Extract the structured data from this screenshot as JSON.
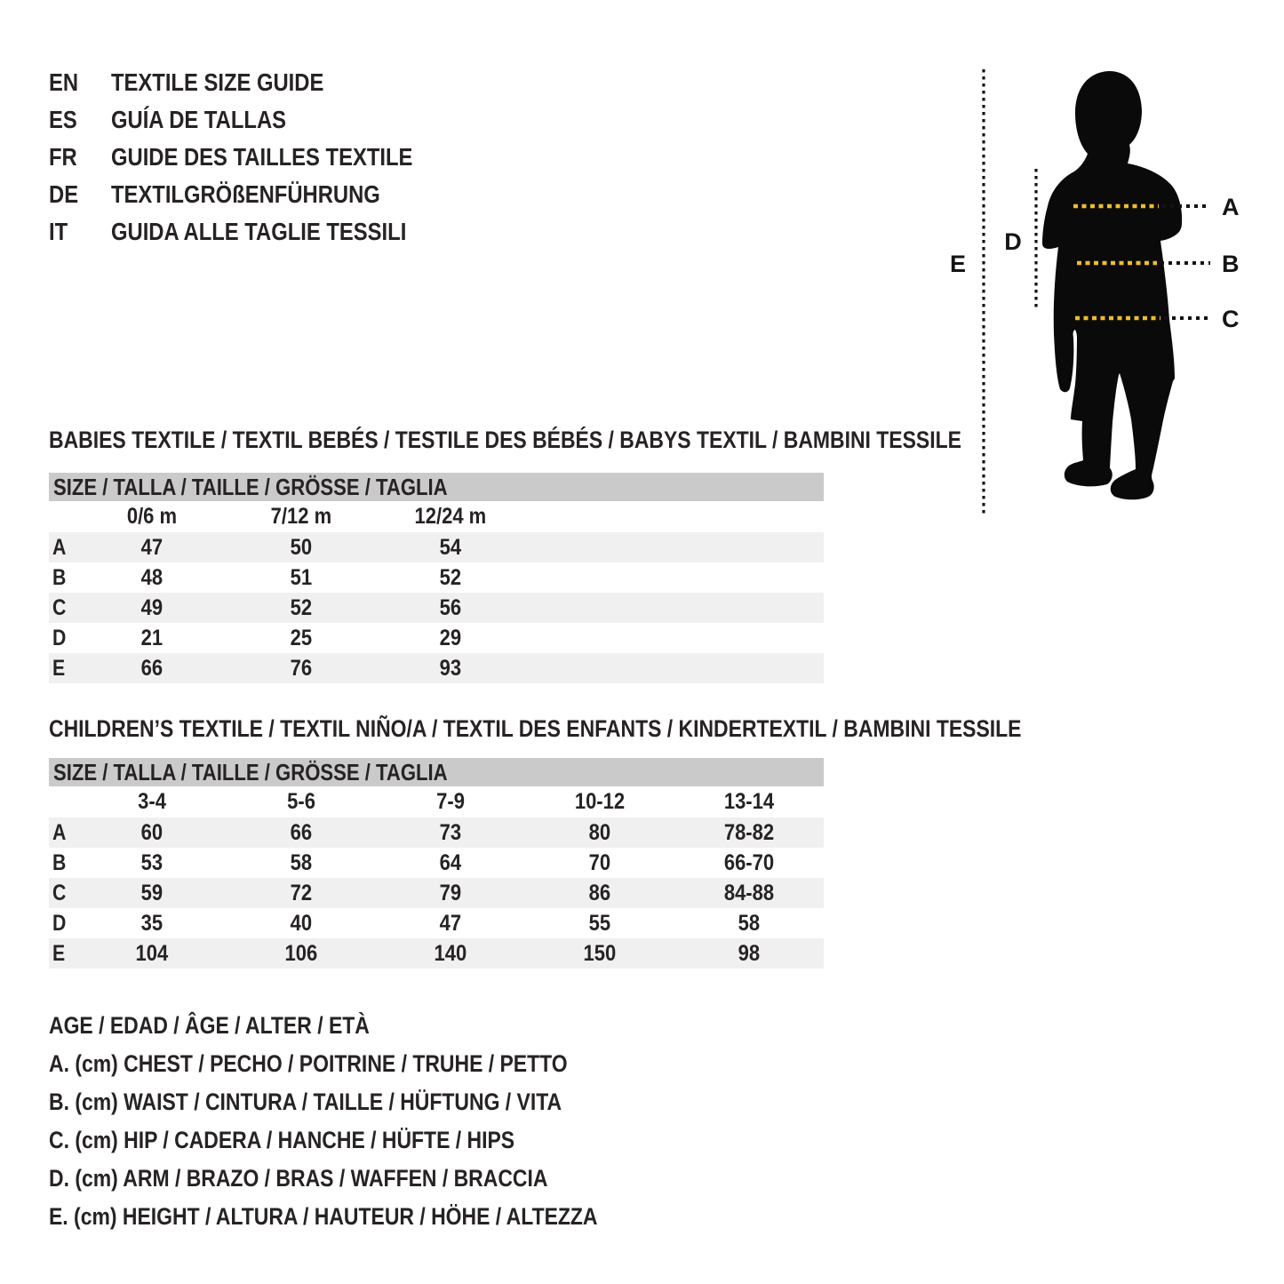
{
  "header": {
    "languages": [
      {
        "code": "EN",
        "title": "TEXTILE SIZE GUIDE"
      },
      {
        "code": "ES",
        "title": "GUÍA DE TALLAS"
      },
      {
        "code": "FR",
        "title": "GUIDE DES TAILLES TEXTILE"
      },
      {
        "code": "DE",
        "title": "TEXTILGRÖßENFÜHRUNG"
      },
      {
        "code": "IT",
        "title": "GUIDA ALLE TAGLIE TESSILI"
      }
    ]
  },
  "figure": {
    "labels": {
      "a": "A",
      "b": "B",
      "c": "C",
      "d": "D",
      "e": "E"
    }
  },
  "babies": {
    "title": "BABIES TEXTILE / TEXTIL BEBÉS / TESTILE DES BÉBÉS / BABYS TEXTIL / BAMBINI TESSILE",
    "size_header": "SIZE / TALLA / TAILLE / GRÖSSE / TAGLIA",
    "columns": [
      "0/6 m",
      "7/12 m",
      "12/24 m"
    ],
    "rows": [
      {
        "label": "A",
        "values": [
          "47",
          "50",
          "54"
        ]
      },
      {
        "label": "B",
        "values": [
          "48",
          "51",
          "52"
        ]
      },
      {
        "label": "C",
        "values": [
          "49",
          "52",
          "56"
        ]
      },
      {
        "label": "D",
        "values": [
          "21",
          "25",
          "29"
        ]
      },
      {
        "label": "E",
        "values": [
          "66",
          "76",
          "93"
        ]
      }
    ]
  },
  "children": {
    "title": "CHILDREN’S TEXTILE / TEXTIL NIÑO/A / TEXTIL DES ENFANTS / KINDERTEXTIL / BAMBINI TESSILE",
    "size_header": "SIZE / TALLA / TAILLE / GRÖSSE / TAGLIA",
    "columns": [
      "3-4",
      "5-6",
      "7-9",
      "10-12",
      "13-14"
    ],
    "rows": [
      {
        "label": "A",
        "values": [
          "60",
          "66",
          "73",
          "80",
          "78-82"
        ]
      },
      {
        "label": "B",
        "values": [
          "53",
          "58",
          "64",
          "70",
          "66-70"
        ]
      },
      {
        "label": "C",
        "values": [
          "59",
          "72",
          "79",
          "86",
          "84-88"
        ]
      },
      {
        "label": "D",
        "values": [
          "35",
          "40",
          "47",
          "55",
          "58"
        ]
      },
      {
        "label": "E",
        "values": [
          "104",
          "106",
          "140",
          "150",
          "98"
        ]
      }
    ]
  },
  "legend": {
    "lines": [
      "AGE / EDAD / ÂGE / ALTER / ETÀ",
      "A. (cm) CHEST / PECHO / POITRINE / TRUHE / PETTO",
      "B. (cm) WAIST / CINTURA / TAILLE / HÜFTUNG / VITA",
      "C. (cm) HIP / CADERA / HANCHE / HÜFTE / HIPS",
      "D. (cm) ARM / BRAZO / BRAS / WAFFEN / BRACCIA",
      "E. (cm) HEIGHT / ALTURA / HAUTEUR / HÖHE / ALTEZZA"
    ]
  },
  "colors": {
    "text": "#272324",
    "header_bar": "#cacaca",
    "row_stripe": "#f1f0f0",
    "measure_yellow": "#eebd2b",
    "silhouette": "#0b0a0a"
  }
}
